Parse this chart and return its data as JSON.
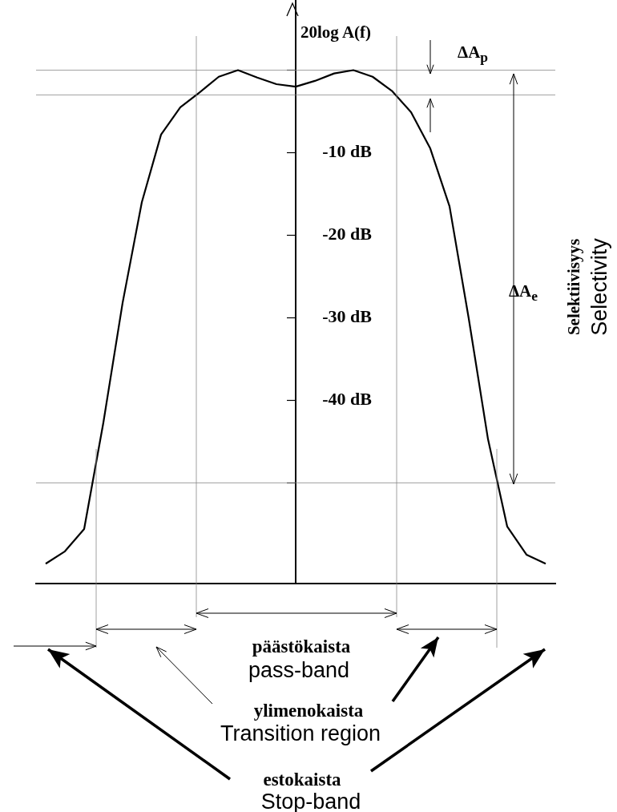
{
  "chart_data": {
    "type": "line",
    "ylabel": "20log A(f)",
    "categories": [
      null,
      null,
      null,
      null,
      null,
      null,
      null,
      null,
      null,
      null,
      null,
      null,
      null,
      null,
      null,
      null,
      null,
      null,
      null,
      null,
      null,
      null,
      null,
      null,
      null,
      null,
      null
    ],
    "series": [
      {
        "color": "#000000",
        "values": [
          -59.8,
          -58.3,
          -55.6,
          -42.7,
          -28.2,
          -16,
          -7.8,
          -4.5,
          -2.7,
          -0.8,
          0,
          -0.9,
          -1.7,
          -2,
          -1.3,
          -0.4,
          0,
          -0.8,
          -2.5,
          -5.1,
          -9.5,
          -16.5,
          -30.1,
          -44.7,
          -55.3,
          -58.7,
          -59.8
        ]
      }
    ],
    "ylim": [
      -62.2,
      8.5
    ],
    "yticks": [
      {
        "value": -50,
        "label": null
      },
      {
        "value": -40,
        "label": "-40 dB"
      },
      {
        "value": -30,
        "label": "-30 dB"
      },
      {
        "value": -20,
        "label": "-20 dB"
      },
      {
        "value": -10,
        "label": "-10 dB"
      },
      {
        "value": 0,
        "label": null
      }
    ],
    "tick_labels": "y",
    "grid": false,
    "legend": false,
    "marker": "none",
    "line_style": "solid",
    "ref_lines": [
      {
        "axis": "y",
        "value": 0,
        "color": "#888888"
      },
      {
        "axis": "y",
        "value": -3,
        "color": "#888888"
      },
      {
        "axis": "y",
        "value": -50,
        "color": "#888888"
      }
    ],
    "annotations": [
      "ΔA$_{p}$",
      "ΔA$_{e}$",
      "Selektiivisyys",
      "Selectivity",
      "päästökaista",
      "pass-band",
      "ylimenokaista",
      "Transition region",
      "estokaista",
      "Stop-band"
    ]
  }
}
